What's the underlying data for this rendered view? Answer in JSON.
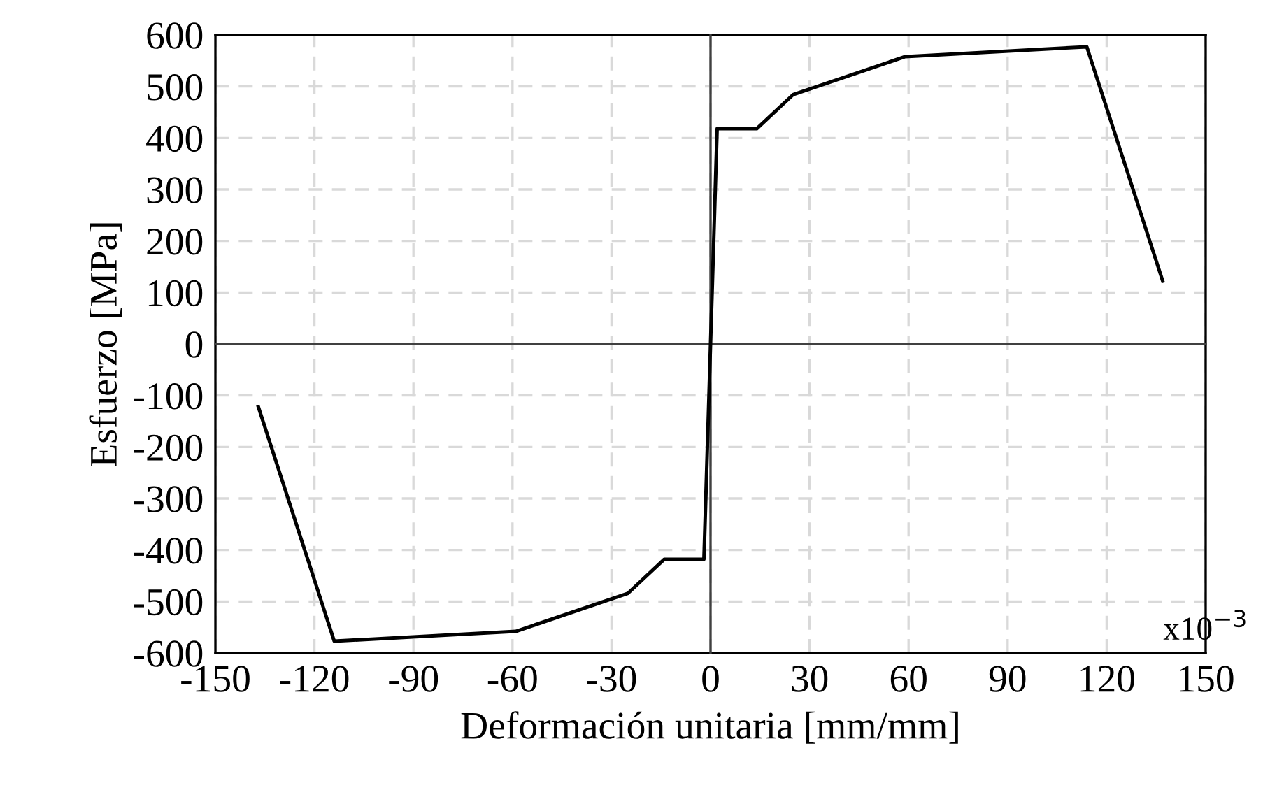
{
  "chart_data": {
    "type": "line",
    "xlabel": "Deformación unitaria [mm/mm]",
    "ylabel": "Esfuerzo [MPa]",
    "annotations": [
      "x10$^{−3}$"
    ],
    "series": [
      {
        "color": "#000000",
        "x": [
          -137,
          -114,
          -59,
          -25,
          -14,
          -2,
          2,
          14,
          25,
          59,
          114,
          137
        ],
        "values": [
          -122,
          -577,
          -558,
          -484,
          -418,
          -418,
          418,
          418,
          484,
          558,
          577,
          122
        ]
      }
    ],
    "xlim": [
      -150,
      150
    ],
    "xticks": [
      -150,
      -120,
      -90,
      -60,
      -30,
      0,
      30,
      60,
      90,
      120,
      150
    ],
    "ylim": [
      -600,
      600
    ],
    "yticks": [
      -600,
      -500,
      -400,
      -300,
      -200,
      -100,
      0,
      100,
      200,
      300,
      400,
      500,
      600
    ],
    "grid": true,
    "legend": false
  }
}
